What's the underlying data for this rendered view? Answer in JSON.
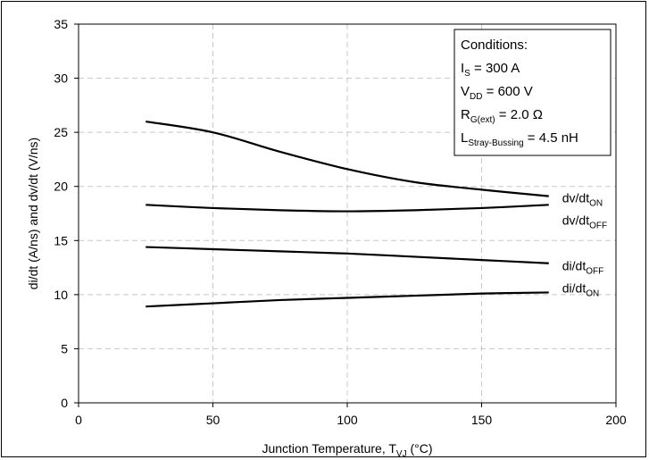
{
  "chart_data": {
    "type": "line",
    "xlabel": {
      "main": "Junction Temperature, T",
      "sub": "VJ",
      "tail": " (°C)"
    },
    "ylabel": "di/dt (A/ns) and dv/dt (V/ns)",
    "xlim": [
      0,
      200
    ],
    "ylim": [
      0,
      35
    ],
    "x_ticks": [
      0,
      50,
      100,
      150,
      200
    ],
    "y_ticks": [
      0,
      5,
      10,
      15,
      20,
      25,
      30,
      35
    ],
    "grid": true,
    "series": [
      {
        "name": "dv/dt",
        "sub": "ON",
        "x": [
          25,
          50,
          75,
          100,
          125,
          150,
          175
        ],
        "y": [
          26.0,
          25.0,
          23.2,
          21.6,
          20.4,
          19.7,
          19.1
        ]
      },
      {
        "name": "dv/dt",
        "sub": "OFF",
        "x": [
          25,
          50,
          75,
          100,
          125,
          150,
          175
        ],
        "y": [
          18.3,
          18.0,
          17.8,
          17.7,
          17.8,
          18.0,
          18.3
        ]
      },
      {
        "name": "di/dt",
        "sub": "OFF",
        "x": [
          25,
          50,
          75,
          100,
          125,
          150,
          175
        ],
        "y": [
          14.4,
          14.2,
          14.0,
          13.8,
          13.5,
          13.2,
          12.9
        ]
      },
      {
        "name": "di/dt",
        "sub": "ON",
        "x": [
          25,
          50,
          75,
          100,
          125,
          150,
          175
        ],
        "y": [
          8.9,
          9.2,
          9.5,
          9.7,
          9.9,
          10.1,
          10.2
        ]
      }
    ],
    "conditions": {
      "title": "Conditions:",
      "lines": [
        {
          "pre": "I",
          "sub": "S",
          "post": " = 300 A"
        },
        {
          "pre": "V",
          "sub": "DD",
          "post": " = 600 V"
        },
        {
          "pre": "R",
          "sub": "G(ext)",
          "post": " = 2.0 Ω"
        },
        {
          "pre": "L",
          "sub": "Stray-Bussing",
          "post": " = 4.5 nH"
        }
      ]
    }
  }
}
